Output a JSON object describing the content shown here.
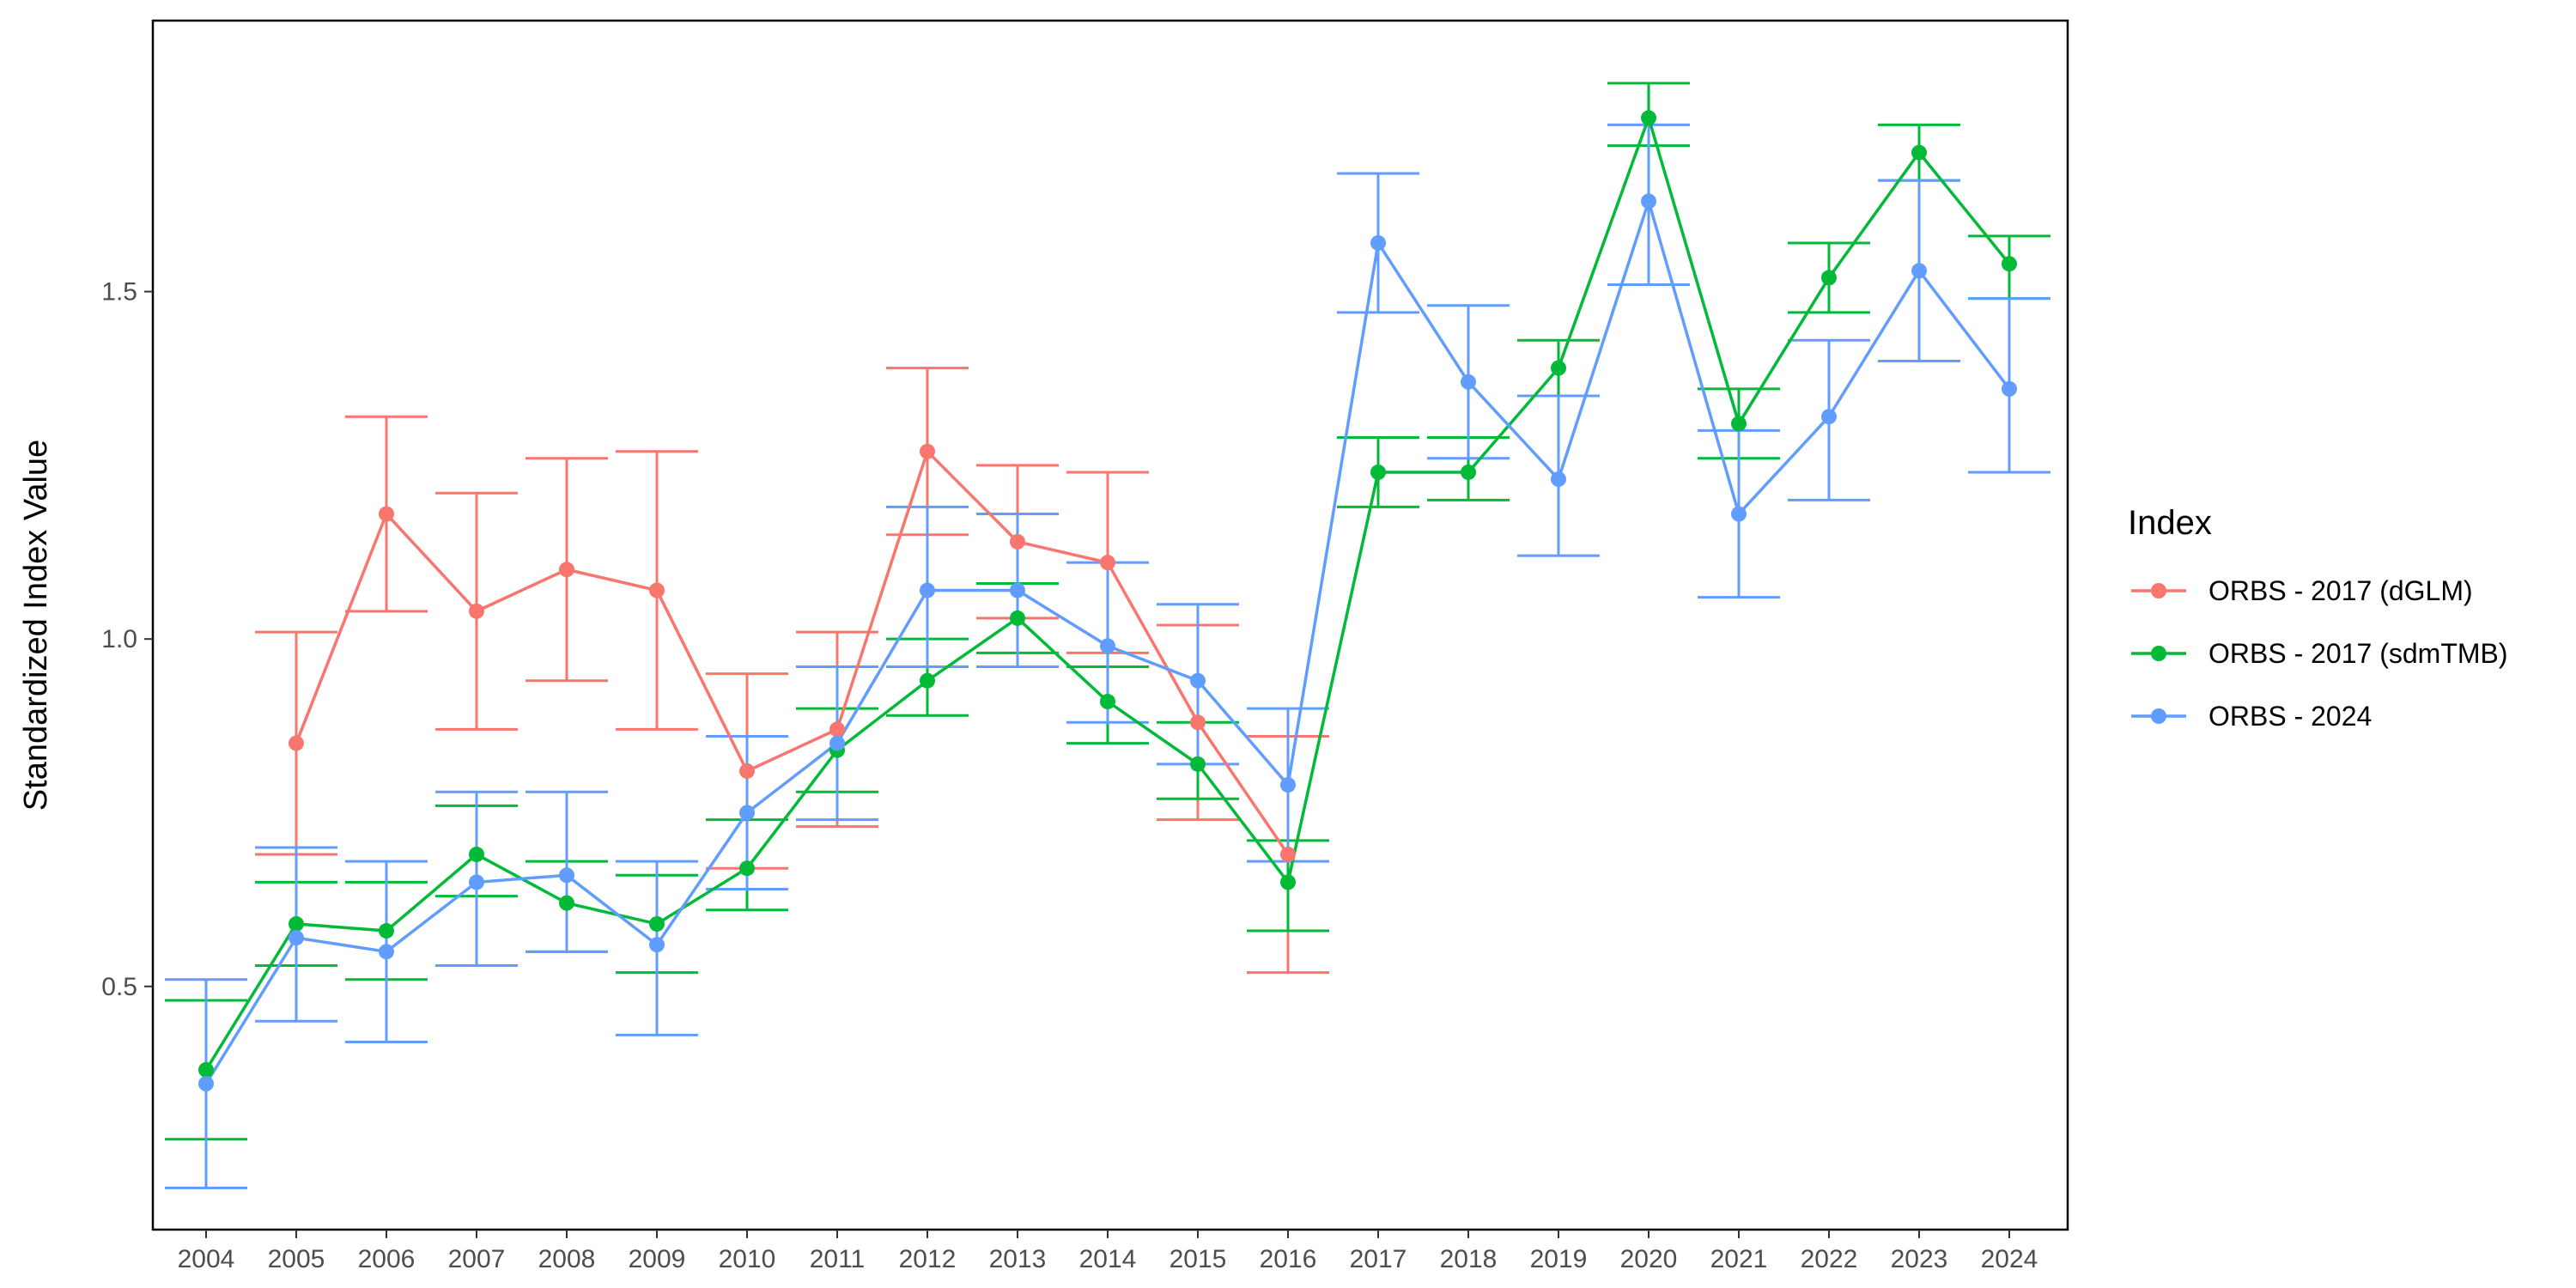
{
  "chart_data": {
    "type": "line",
    "ylabel": "Standardized Index Value",
    "xlabel": "",
    "x": [
      "2004",
      "2005",
      "2006",
      "2007",
      "2008",
      "2009",
      "2010",
      "2011",
      "2012",
      "2013",
      "2014",
      "2015",
      "2016",
      "2017",
      "2018",
      "2019",
      "2020",
      "2021",
      "2022",
      "2023",
      "2024"
    ],
    "yticks": [
      "0.5",
      "1.0",
      "1.5"
    ],
    "ylim": [
      0.15,
      1.89
    ],
    "grid": false,
    "legend": {
      "title": "Index",
      "position": "right"
    },
    "series": [
      {
        "name": "ORBS - 2017 (dGLM)",
        "color": "#F8766D",
        "x": [
          "2005",
          "2006",
          "2007",
          "2008",
          "2009",
          "2010",
          "2011",
          "2012",
          "2013",
          "2014",
          "2015",
          "2016"
        ],
        "values": [
          0.85,
          1.18,
          1.04,
          1.1,
          1.07,
          0.81,
          0.87,
          1.27,
          1.14,
          1.11,
          0.88,
          0.69
        ],
        "lower": [
          0.69,
          1.04,
          0.87,
          0.94,
          0.87,
          0.67,
          0.73,
          1.15,
          1.03,
          0.98,
          0.74,
          0.52
        ],
        "upper": [
          1.01,
          1.32,
          1.21,
          1.26,
          1.27,
          0.95,
          1.01,
          1.39,
          1.25,
          1.24,
          1.02,
          0.86
        ]
      },
      {
        "name": "ORBS - 2017 (sdmTMB)",
        "color": "#00BA38",
        "x": [
          "2004",
          "2005",
          "2006",
          "2007",
          "2008",
          "2009",
          "2010",
          "2011",
          "2012",
          "2013",
          "2014",
          "2015",
          "2016",
          "2017",
          "2018",
          "2019",
          "2020",
          "2021",
          "2022",
          "2023",
          "2024"
        ],
        "values": [
          0.38,
          0.59,
          0.58,
          0.69,
          0.62,
          0.59,
          0.67,
          0.84,
          0.94,
          1.03,
          0.91,
          0.82,
          0.65,
          1.24,
          1.24,
          1.39,
          1.75,
          1.31,
          1.52,
          1.7,
          1.54
        ],
        "lower": [
          0.28,
          0.53,
          0.51,
          0.63,
          0.55,
          0.52,
          0.61,
          0.78,
          0.89,
          0.98,
          0.85,
          0.77,
          0.58,
          1.19,
          1.2,
          1.35,
          1.71,
          1.26,
          1.47,
          1.66,
          1.49
        ],
        "upper": [
          0.48,
          0.65,
          0.65,
          0.76,
          0.68,
          0.66,
          0.74,
          0.9,
          1.0,
          1.08,
          0.96,
          0.88,
          0.71,
          1.29,
          1.29,
          1.43,
          1.8,
          1.36,
          1.57,
          1.74,
          1.58
        ]
      },
      {
        "name": "ORBS - 2024",
        "color": "#619CFF",
        "x": [
          "2004",
          "2005",
          "2006",
          "2007",
          "2008",
          "2009",
          "2010",
          "2011",
          "2012",
          "2013",
          "2014",
          "2015",
          "2016",
          "2017",
          "2018",
          "2019",
          "2020",
          "2021",
          "2022",
          "2023",
          "2024"
        ],
        "values": [
          0.36,
          0.57,
          0.55,
          0.65,
          0.66,
          0.56,
          0.75,
          0.85,
          1.07,
          1.07,
          0.99,
          0.94,
          0.79,
          1.57,
          1.37,
          1.23,
          1.63,
          1.18,
          1.32,
          1.53,
          1.36
        ],
        "lower": [
          0.21,
          0.45,
          0.42,
          0.53,
          0.55,
          0.43,
          0.64,
          0.74,
          0.96,
          0.96,
          0.88,
          0.82,
          0.68,
          1.47,
          1.26,
          1.12,
          1.51,
          1.06,
          1.2,
          1.4,
          1.24
        ],
        "upper": [
          0.51,
          0.7,
          0.68,
          0.78,
          0.78,
          0.68,
          0.86,
          0.96,
          1.19,
          1.18,
          1.11,
          1.05,
          0.9,
          1.67,
          1.48,
          1.35,
          1.74,
          1.3,
          1.43,
          1.66,
          1.49
        ]
      }
    ]
  }
}
